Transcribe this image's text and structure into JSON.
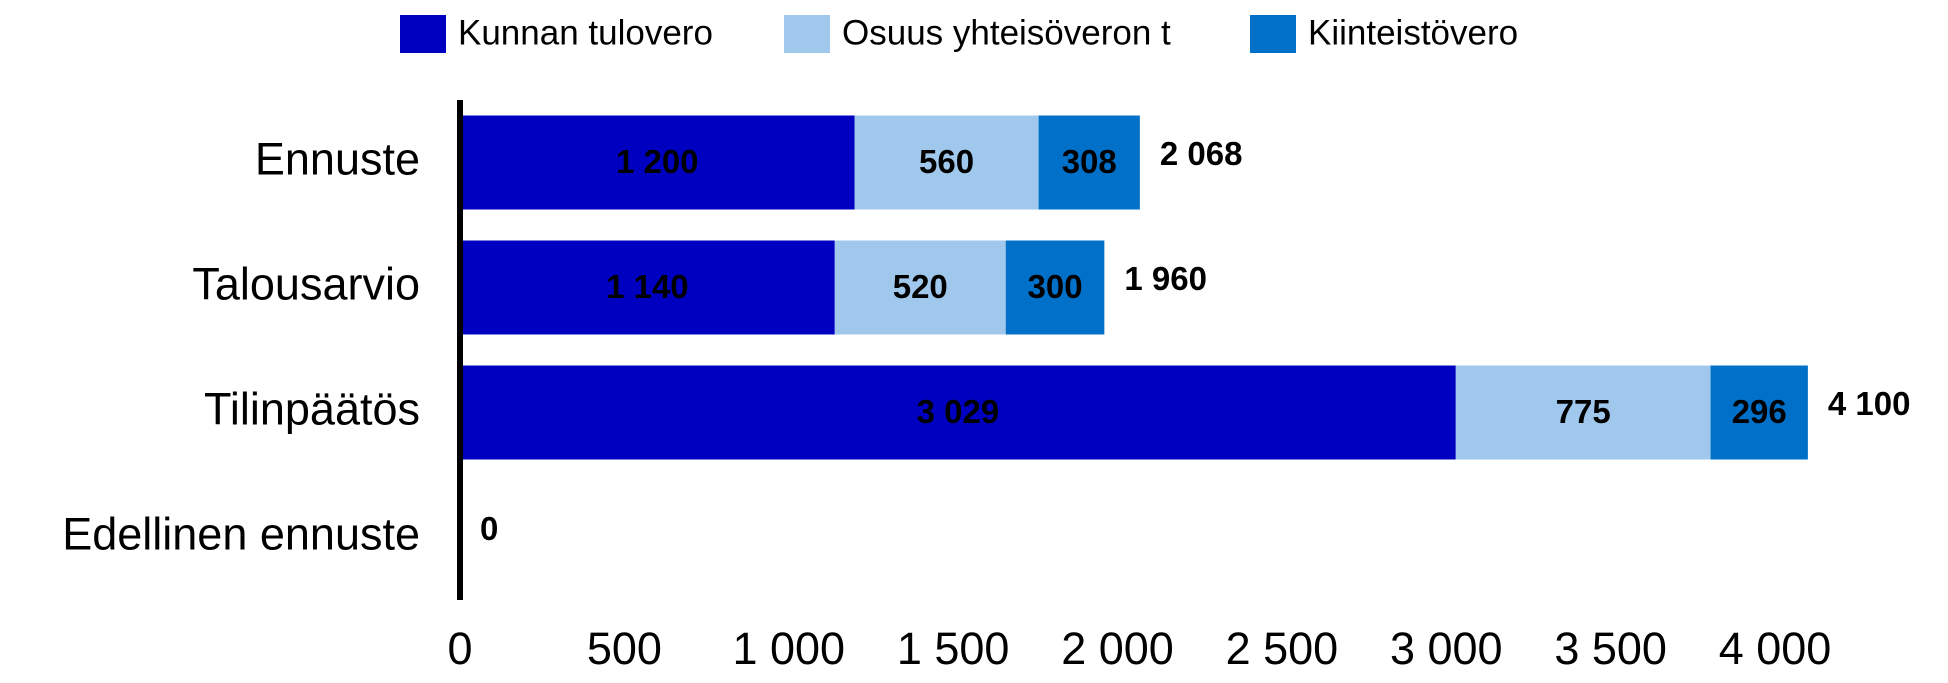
{
  "chart_data": {
    "type": "stacked-barh",
    "categories": [
      "Ennuste",
      "Talousarvio",
      "Tilinpäätös",
      "Edellinen ennuste"
    ],
    "series": [
      {
        "name": "Kunnan tulovero",
        "color": "#0000c0",
        "values": [
          1200,
          1140,
          3029,
          0
        ],
        "value_labels": [
          "1 200",
          "1 140",
          "3 029",
          null
        ]
      },
      {
        "name": "Osuus yhteisöveron t",
        "color": "#a0c8ec",
        "values": [
          560,
          520,
          775,
          0
        ],
        "value_labels": [
          "560",
          "520",
          "775",
          null
        ]
      },
      {
        "name": "Kiinteistövero",
        "color": "#0070c8",
        "values": [
          308,
          300,
          296,
          0
        ],
        "value_labels": [
          "308",
          "300",
          "296",
          null
        ]
      }
    ],
    "totals": [
      2068,
      1960,
      4100,
      0
    ],
    "total_labels": [
      "2 068",
      "1 960",
      "4 100",
      "0"
    ],
    "xlim": [
      0,
      4000
    ],
    "xticks": [
      0,
      500,
      {
        "value": 1000,
        "label": "1 000"
      },
      {
        "value": 1500,
        "label": "1 500"
      },
      {
        "value": 2000,
        "label": "2 000"
      },
      {
        "value": 2500,
        "label": "2 500"
      },
      {
        "value": 3000,
        "label": "3 000"
      },
      {
        "value": 3500,
        "label": "3 500"
      },
      {
        "value": 4000,
        "label": "4 000"
      }
    ],
    "legend": "top"
  }
}
